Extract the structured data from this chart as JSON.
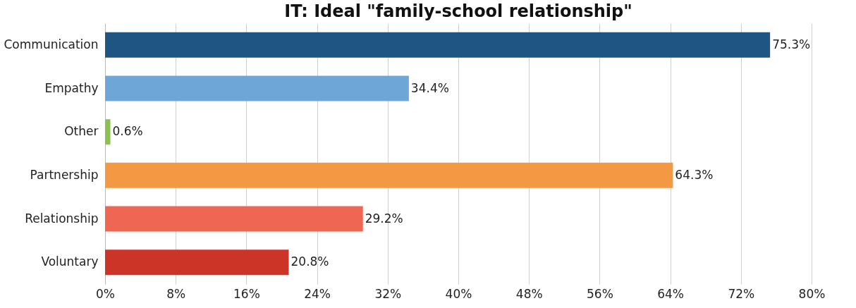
{
  "chart_data": {
    "type": "bar",
    "orientation": "horizontal",
    "title": "IT: Ideal \"family-school relationship\"",
    "categories": [
      "Communication",
      "Empathy",
      "Other",
      "Partnership",
      "Relationship",
      "Voluntary"
    ],
    "values": [
      75.3,
      34.4,
      0.6,
      64.3,
      29.2,
      20.8
    ],
    "colors": [
      "#1f5582",
      "#6ea7d7",
      "#8cc152",
      "#f39843",
      "#ef6652",
      "#cb3427"
    ],
    "value_labels": [
      "75.3%",
      "34.4%",
      "0.6%",
      "64.3%",
      "29.2%",
      "20.8%"
    ],
    "xlim": [
      0,
      80
    ],
    "xticks": [
      {
        "value": 0,
        "label": "0%"
      },
      {
        "value": 8,
        "label": "8%"
      },
      {
        "value": 16,
        "label": "16%"
      },
      {
        "value": 24,
        "label": "24%"
      },
      {
        "value": 32,
        "label": "32%"
      },
      {
        "value": 40,
        "label": "40%"
      },
      {
        "value": 48,
        "label": "48%"
      },
      {
        "value": 56,
        "label": "56%"
      },
      {
        "value": 64,
        "label": "64%"
      },
      {
        "value": 72,
        "label": "72%"
      },
      {
        "value": 80,
        "label": "80%"
      }
    ],
    "grid": "x"
  }
}
